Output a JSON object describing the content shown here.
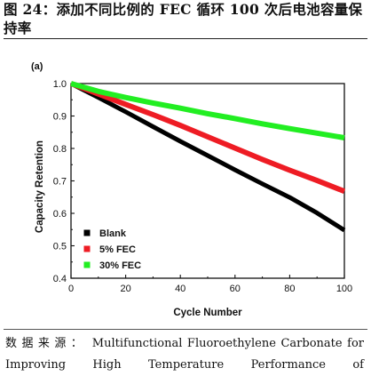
{
  "figure": {
    "title": "图 24：添加不同比例的 FEC 循环 100 次后电池容量保持率",
    "source_label": "数据来源：",
    "source_text": "Multifunctional Fluoroethylene Carbonate for Improving High Temperature Performance of"
  },
  "chart_data": {
    "type": "line",
    "panel_label": "(a)",
    "xlabel": "Cycle Number",
    "ylabel": "Capacity Retention",
    "xlim": [
      0,
      100
    ],
    "ylim": [
      0.4,
      1.0
    ],
    "xticks": [
      0,
      20,
      40,
      60,
      80,
      100
    ],
    "yticks": [
      0.4,
      0.5,
      0.6,
      0.7,
      0.8,
      0.9,
      1.0
    ],
    "x": [
      0,
      10,
      20,
      30,
      40,
      50,
      60,
      70,
      80,
      90,
      100
    ],
    "series": [
      {
        "name": "Blank",
        "color": "#000000",
        "values": [
          1.0,
          0.957,
          0.913,
          0.867,
          0.822,
          0.778,
          0.734,
          0.691,
          0.649,
          0.601,
          0.548
        ]
      },
      {
        "name": "5% FEC",
        "color": "#ee1c24",
        "values": [
          1.0,
          0.968,
          0.936,
          0.904,
          0.871,
          0.836,
          0.801,
          0.766,
          0.733,
          0.701,
          0.668
        ]
      },
      {
        "name": "30% FEC",
        "color": "#22ee22",
        "values": [
          1.0,
          0.976,
          0.957,
          0.94,
          0.924,
          0.907,
          0.892,
          0.876,
          0.861,
          0.847,
          0.833
        ]
      }
    ],
    "legend_position": "bottom-left",
    "grid": false
  }
}
